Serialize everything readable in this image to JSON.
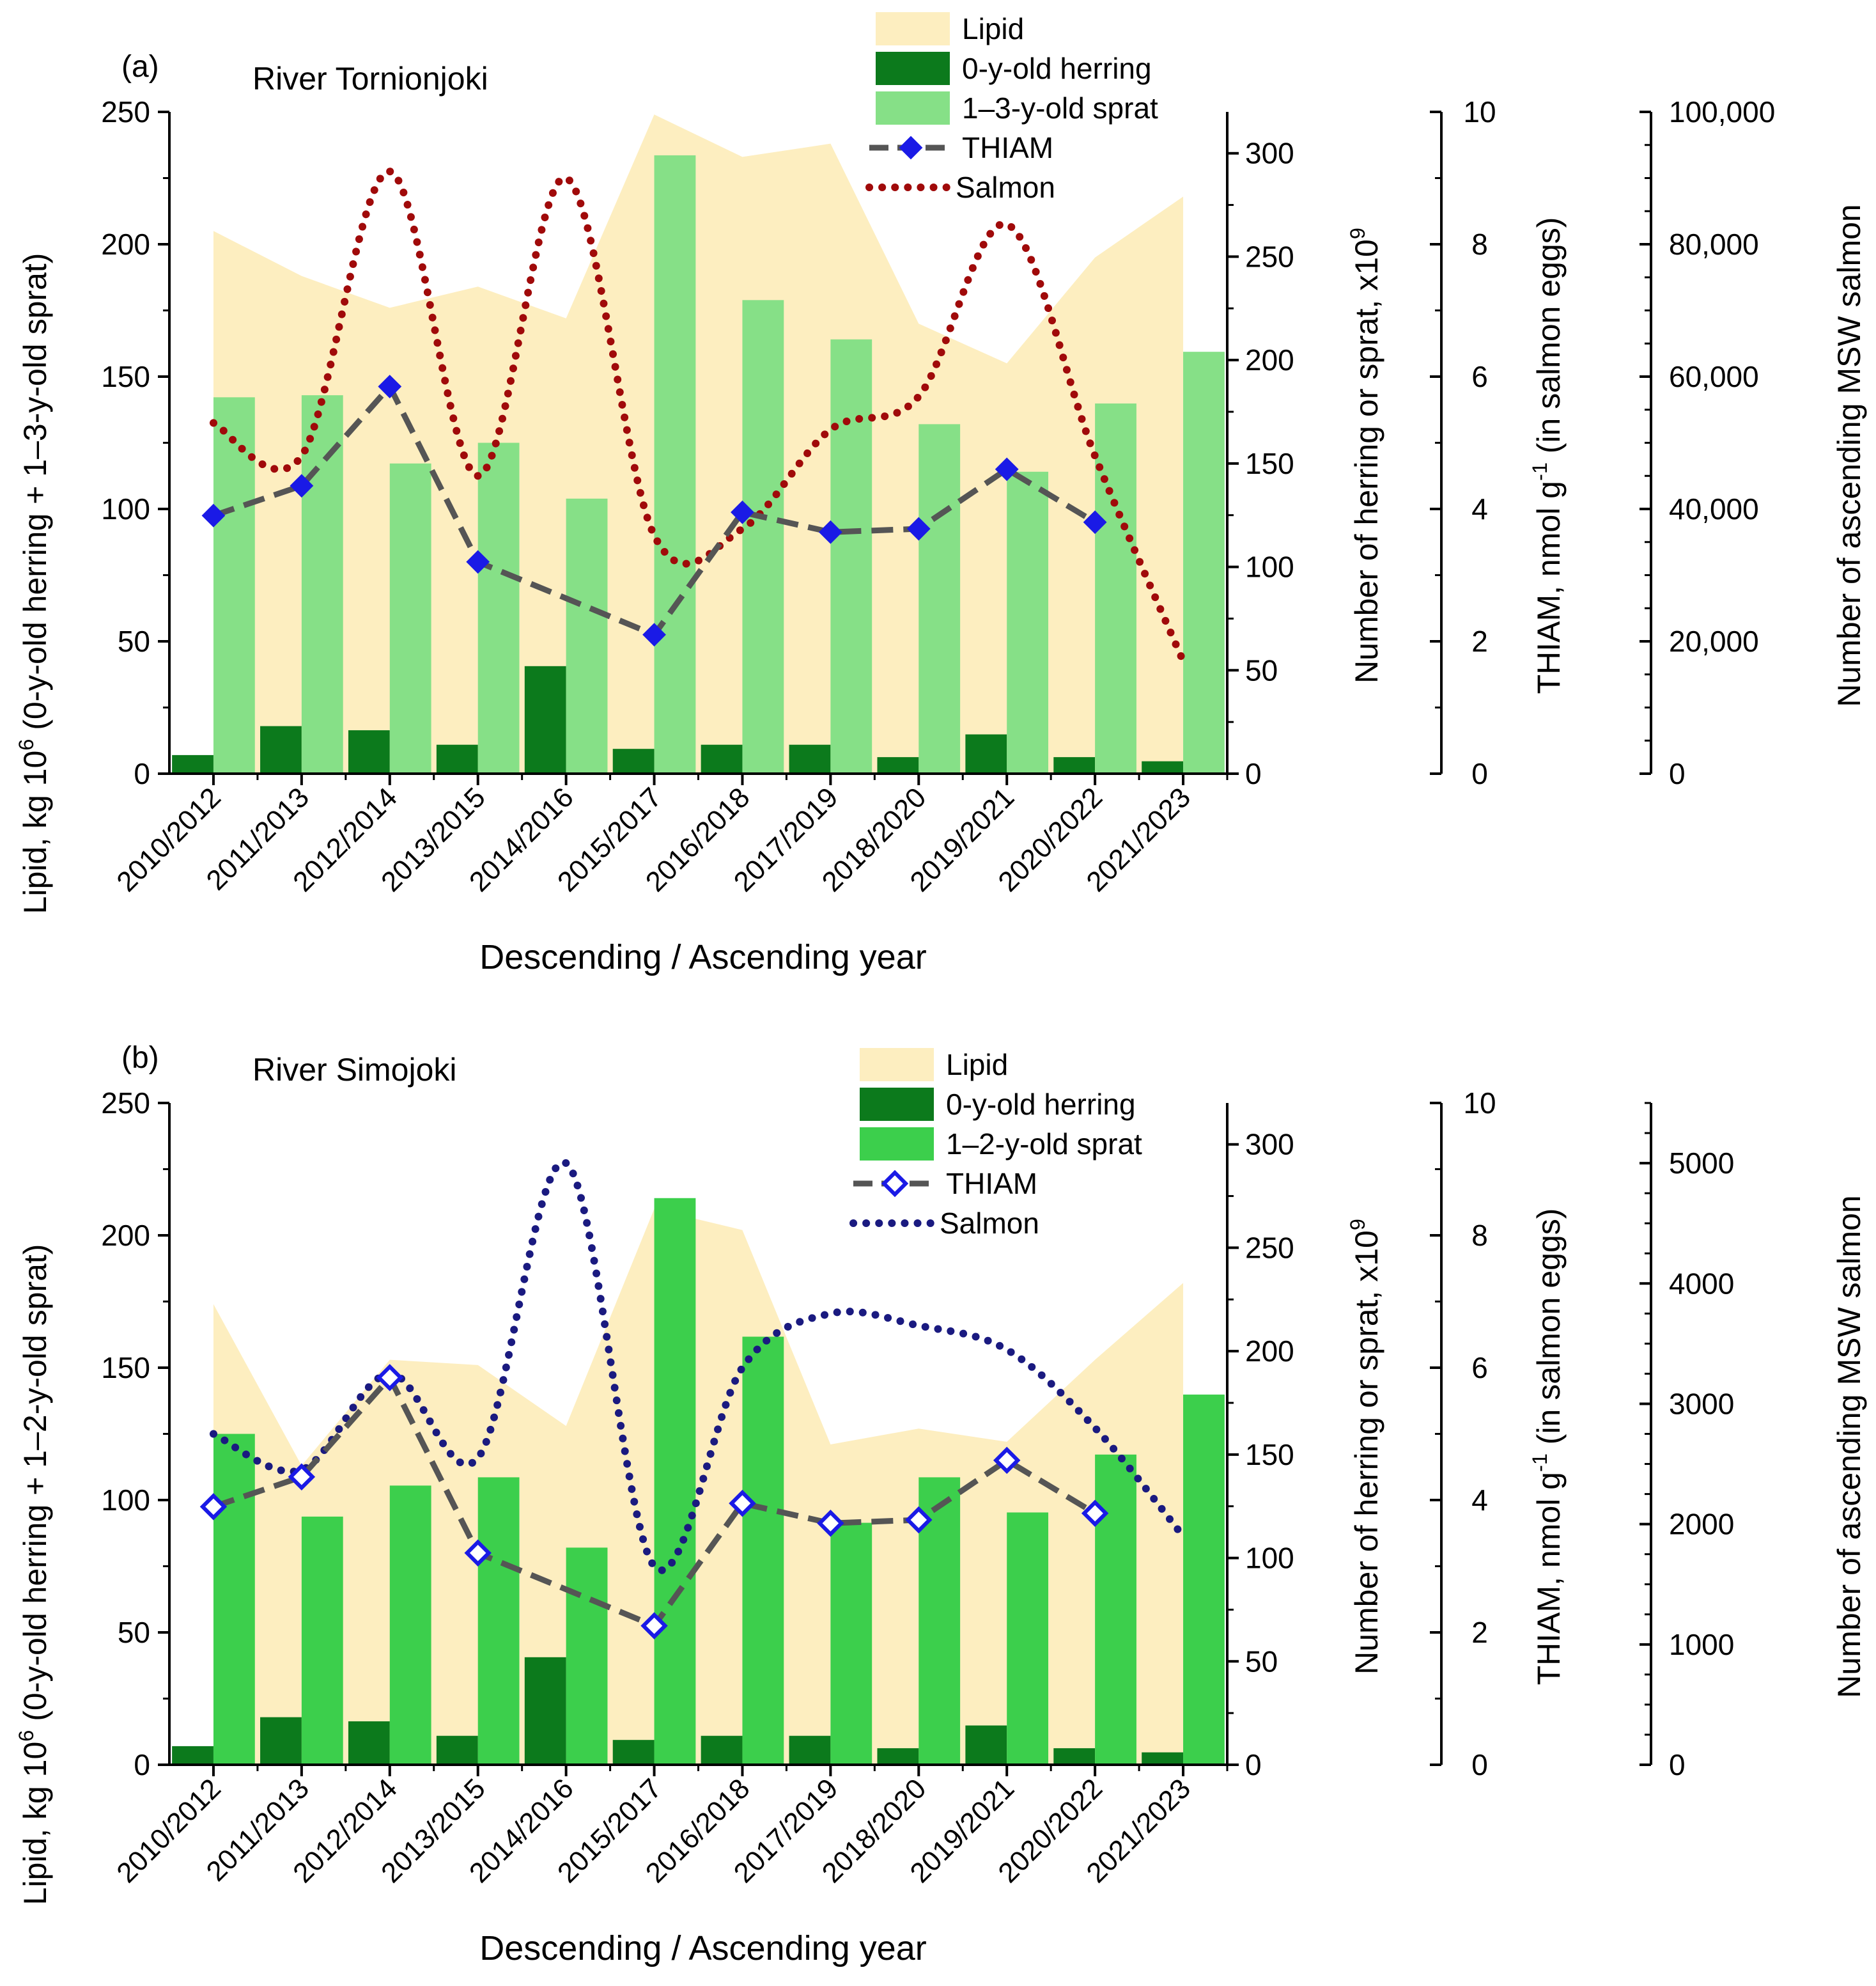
{
  "colors": {
    "lipid": "#fdeec0",
    "herring": "#0c7a1c",
    "sprat_a": "#86e087",
    "sprat_b": "#3ccf4c",
    "thiam": "#1a1ae6",
    "thiam_line": "#555555",
    "salmon_a": "#a00a0a",
    "salmon_b": "#1a1a80"
  },
  "chart_data": [
    {
      "type": "bar",
      "panel_label": "(a)",
      "title": "River Tornionjoki",
      "xlabel": "Descending / Ascending year",
      "categories": [
        "2010/2012",
        "2011/2013",
        "2012/2014",
        "2013/2015",
        "2014/2016",
        "2015/2017",
        "2016/2018",
        "2017/2019",
        "2018/2020",
        "2019/2021",
        "2020/2022",
        "2021/2023"
      ],
      "axes": {
        "left": {
          "label_pre": "Lipid, kg 10",
          "label_sup": "6",
          "label_post": " (0-y-old herring + 1–3-y-old sprat)",
          "ylim": [
            0,
            250
          ],
          "ticks": [
            "0",
            "50",
            "100",
            "150",
            "200",
            "250"
          ],
          "tick_values": [
            0,
            50,
            100,
            150,
            200,
            250
          ]
        },
        "right1": {
          "label_pre": "Number of herring or sprat, x10",
          "label_sup": "9",
          "label_post": "",
          "ylim": [
            0,
            320
          ],
          "ticks": [
            "0",
            "50",
            "100",
            "150",
            "200",
            "250",
            "300"
          ],
          "tick_values": [
            0,
            50,
            100,
            150,
            200,
            250,
            300
          ]
        },
        "right2": {
          "label_pre": "THIAM, nmol g",
          "label_sup": "-1",
          "label_post": " (in salmon eggs)",
          "ylim": [
            0,
            10
          ],
          "ticks": [
            "0",
            "2",
            "4",
            "6",
            "8",
            "10"
          ],
          "tick_values": [
            0,
            2,
            4,
            6,
            8,
            10
          ]
        },
        "right3": {
          "label_pre": "Number of ascending MSW salmon",
          "label_sup": "",
          "label_post": "",
          "ylim": [
            0,
            100000
          ],
          "ticks": [
            "0",
            "20,000",
            "40,000",
            "60,000",
            "80,000",
            "100,000"
          ],
          "tick_values": [
            0,
            20000,
            40000,
            60000,
            80000,
            100000
          ]
        }
      },
      "legend": [
        "Lipid",
        "0-y-old herring",
        "1–3-y-old sprat",
        "THIAM",
        "Salmon"
      ],
      "series": [
        {
          "name": "Lipid",
          "kind": "area",
          "axis": "left",
          "values": [
            205,
            188,
            176,
            184,
            172,
            249,
            233,
            238,
            170,
            155,
            195,
            218
          ]
        },
        {
          "name": "0-y-old herring",
          "kind": "bar",
          "axis": "right1",
          "values": [
            9,
            23,
            21,
            14,
            52,
            12,
            14,
            14,
            8,
            19,
            8,
            6
          ]
        },
        {
          "name": "1–3-y-old sprat",
          "kind": "bar",
          "axis": "right1",
          "values": [
            182,
            183,
            150,
            160,
            133,
            299,
            229,
            210,
            169,
            146,
            179,
            204
          ]
        },
        {
          "name": "THIAM",
          "kind": "line",
          "axis": "right2",
          "values": [
            3.9,
            4.35,
            5.85,
            3.2,
            null,
            2.1,
            3.95,
            3.65,
            3.7,
            4.6,
            3.8,
            null
          ]
        },
        {
          "name": "Salmon",
          "kind": "dotted",
          "axis": "right3",
          "values": [
            53000,
            48000,
            91000,
            45000,
            90000,
            36000,
            37000,
            52000,
            57000,
            83000,
            48000,
            17000
          ]
        }
      ]
    },
    {
      "type": "bar",
      "panel_label": "(b)",
      "title": "River Simojoki",
      "xlabel": "Descending / Ascending year",
      "categories": [
        "2010/2012",
        "2011/2013",
        "2012/2014",
        "2013/2015",
        "2014/2016",
        "2015/2017",
        "2016/2018",
        "2017/2019",
        "2018/2020",
        "2019/2021",
        "2020/2022",
        "2021/2023"
      ],
      "axes": {
        "left": {
          "label_pre": "Lipid, kg 10",
          "label_sup": "6",
          "label_post": " (0-y-old herring + 1–2-y-old sprat)",
          "ylim": [
            0,
            250
          ],
          "ticks": [
            "0",
            "50",
            "100",
            "150",
            "200",
            "250"
          ],
          "tick_values": [
            0,
            50,
            100,
            150,
            200,
            250
          ]
        },
        "right1": {
          "label_pre": "Number of herring or sprat, x10",
          "label_sup": "9",
          "label_post": "",
          "ylim": [
            0,
            320
          ],
          "ticks": [
            "0",
            "50",
            "100",
            "150",
            "200",
            "250",
            "300"
          ],
          "tick_values": [
            0,
            50,
            100,
            150,
            200,
            250,
            300
          ]
        },
        "right2": {
          "label_pre": "THIAM, nmol g",
          "label_sup": "-1",
          "label_post": " (in salmon eggs)",
          "ylim": [
            0,
            10
          ],
          "ticks": [
            "0",
            "2",
            "4",
            "6",
            "8",
            "10"
          ],
          "tick_values": [
            0,
            2,
            4,
            6,
            8,
            10
          ]
        },
        "right3": {
          "label_pre": "Number of ascending MSW salmon",
          "label_sup": "",
          "label_post": "",
          "ylim": [
            0,
            5500
          ],
          "ticks": [
            "0",
            "1000",
            "2000",
            "3000",
            "4000",
            "5000"
          ],
          "tick_values": [
            0,
            1000,
            2000,
            3000,
            4000,
            5000
          ]
        }
      },
      "legend": [
        "Lipid",
        "0-y-old herring",
        "1–2-y-old sprat",
        "THIAM",
        "Salmon"
      ],
      "series": [
        {
          "name": "Lipid",
          "kind": "area",
          "axis": "left",
          "values": [
            174,
            113,
            153,
            151,
            128,
            210,
            202,
            121,
            127,
            122,
            153,
            182
          ]
        },
        {
          "name": "0-y-old herring",
          "kind": "bar",
          "axis": "right1",
          "values": [
            9,
            23,
            21,
            14,
            52,
            12,
            14,
            14,
            8,
            19,
            8,
            6
          ]
        },
        {
          "name": "1–2-y-old sprat",
          "kind": "bar",
          "axis": "right1",
          "values": [
            160,
            120,
            135,
            139,
            105,
            274,
            207,
            117,
            139,
            122,
            150,
            179
          ]
        },
        {
          "name": "THIAM",
          "kind": "line",
          "axis": "right2",
          "values": [
            3.9,
            4.35,
            5.85,
            3.2,
            null,
            2.1,
            3.95,
            3.65,
            3.7,
            4.6,
            3.8,
            null
          ]
        },
        {
          "name": "Salmon",
          "kind": "dotted",
          "axis": "right3",
          "values": [
            2750,
            2450,
            3250,
            2550,
            5000,
            1650,
            3300,
            3750,
            3650,
            3450,
            2800,
            1900
          ]
        }
      ]
    }
  ]
}
